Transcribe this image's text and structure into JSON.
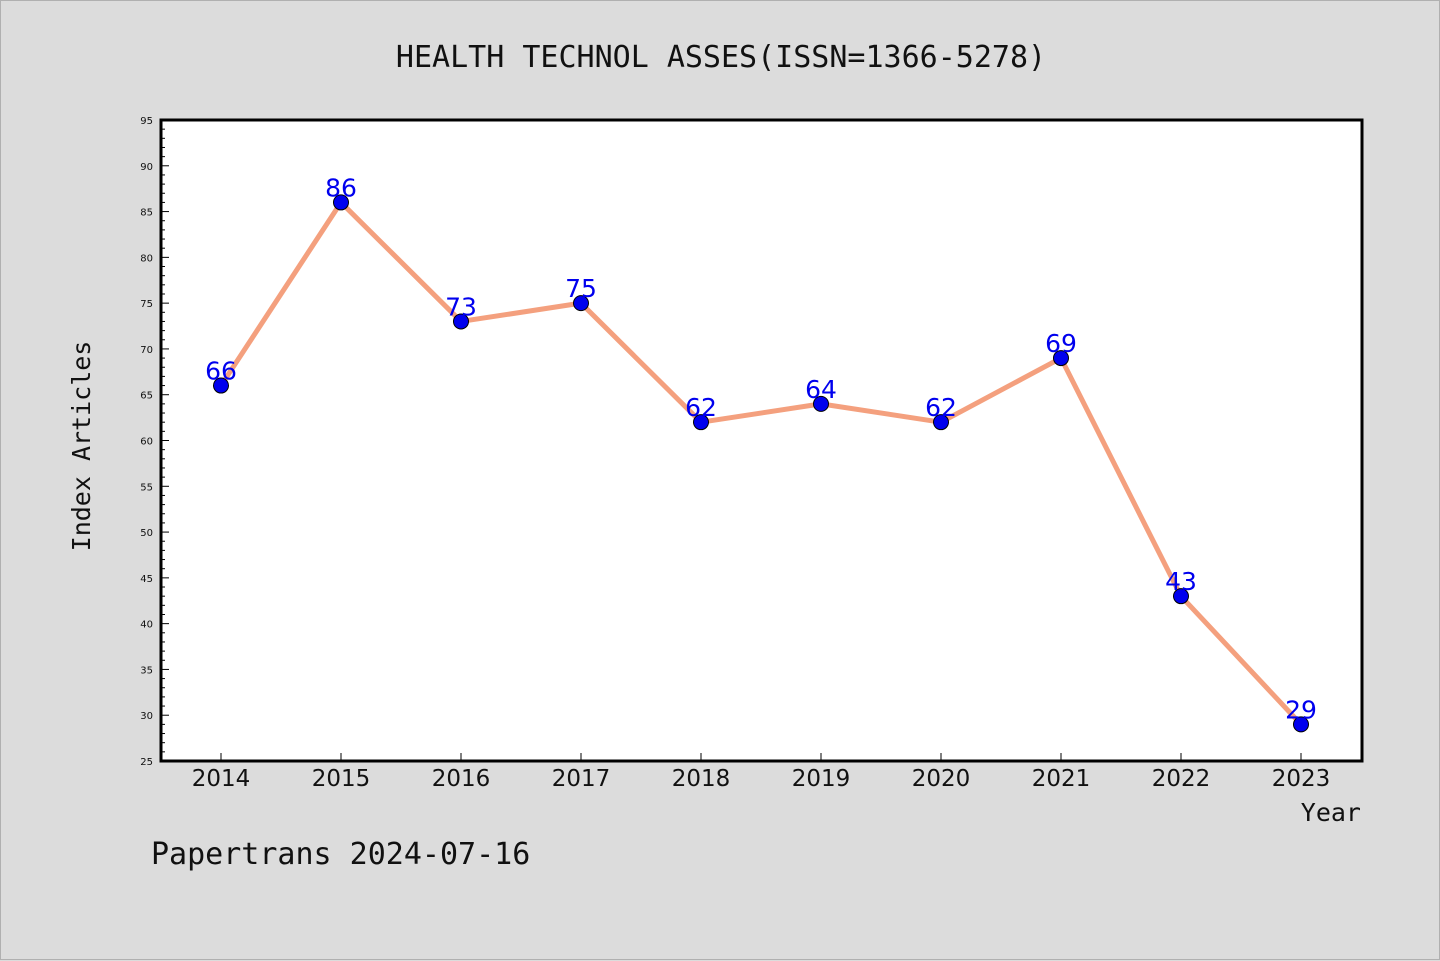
{
  "chart_data": {
    "type": "line",
    "title": "HEALTH TECHNOL ASSES(ISSN=1366-5278)",
    "xlabel": "Year",
    "ylabel": "Index Articles",
    "categories": [
      "2014",
      "2015",
      "2016",
      "2017",
      "2018",
      "2019",
      "2020",
      "2021",
      "2022",
      "2023"
    ],
    "series": [
      {
        "values": [
          66,
          86,
          73,
          75,
          62,
          64,
          62,
          69,
          43,
          29
        ]
      }
    ],
    "ylim": [
      25,
      95
    ],
    "yticks": [
      "25",
      "30",
      "35",
      "40",
      "45",
      "50",
      "55",
      "60",
      "65",
      "70",
      "75",
      "80",
      "85",
      "90",
      "95"
    ],
    "grid": false,
    "line_color": "#f4a07e",
    "marker_color": "#0000ee",
    "label_color": "#0000ee"
  },
  "footer": "Papertrans 2024-07-16"
}
